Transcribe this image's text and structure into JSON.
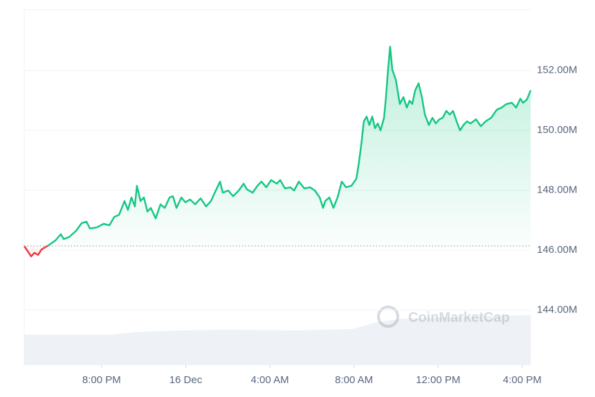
{
  "chart_data": {
    "type": "line",
    "watermark": "CoinMarketCap",
    "x": [
      16.32,
      16.65,
      16.81,
      16.98,
      17.14,
      17.47,
      17.8,
      18.06,
      18.2,
      18.46,
      18.79,
      19.05,
      19.28,
      19.45,
      19.77,
      20.1,
      20.37,
      20.6,
      20.83,
      21.09,
      21.25,
      21.42,
      21.58,
      21.68,
      21.85,
      22.01,
      22.18,
      22.34,
      22.57,
      22.8,
      23.0,
      23.23,
      23.39,
      23.56,
      23.79,
      23.98,
      24.21,
      24.45,
      24.71,
      24.97,
      25.2,
      25.43,
      25.63,
      25.76,
      26.02,
      26.25,
      26.52,
      26.75,
      26.91,
      27.18,
      27.41,
      27.6,
      27.83,
      28.06,
      28.33,
      28.49,
      28.72,
      28.98,
      29.15,
      29.38,
      29.64,
      29.91,
      30.14,
      30.37,
      30.53,
      30.63,
      30.83,
      31.02,
      31.22,
      31.42,
      31.62,
      31.88,
      32.11,
      32.21,
      32.34,
      32.47,
      32.6,
      32.73,
      32.87,
      33.0,
      33.13,
      33.26,
      33.43,
      33.52,
      33.62,
      33.72,
      33.82,
      33.99,
      34.18,
      34.35,
      34.51,
      34.64,
      34.77,
      34.91,
      35.07,
      35.23,
      35.37,
      35.56,
      35.73,
      35.89,
      36.06,
      36.22,
      36.39,
      36.55,
      36.71,
      36.88,
      37.04,
      37.21,
      37.37,
      37.54,
      37.8,
      38.03,
      38.26,
      38.52,
      38.79,
      39.02,
      39.25,
      39.51,
      39.71,
      39.91,
      40.04,
      40.23,
      40.4
    ],
    "series": [
      {
        "color": "#16c784",
        "down_color": "#ea3943",
        "values": [
          146.14,
          145.79,
          145.91,
          145.84,
          146.02,
          146.16,
          146.32,
          146.53,
          146.37,
          146.44,
          146.65,
          146.9,
          146.95,
          146.72,
          146.76,
          146.88,
          146.83,
          147.11,
          147.18,
          147.64,
          147.34,
          147.76,
          147.46,
          148.15,
          147.64,
          147.76,
          147.29,
          147.41,
          147.06,
          147.53,
          147.41,
          147.76,
          147.8,
          147.41,
          147.76,
          147.6,
          147.69,
          147.53,
          147.73,
          147.46,
          147.64,
          147.99,
          148.29,
          147.92,
          147.99,
          147.8,
          147.99,
          148.22,
          148.03,
          147.92,
          148.15,
          148.29,
          148.1,
          148.34,
          148.22,
          148.34,
          148.06,
          148.1,
          147.99,
          148.29,
          148.06,
          148.1,
          147.99,
          147.76,
          147.41,
          147.64,
          147.76,
          147.41,
          147.76,
          148.29,
          148.1,
          148.15,
          148.38,
          148.8,
          149.49,
          150.3,
          150.46,
          150.18,
          150.46,
          150.07,
          150.23,
          150.0,
          150.42,
          151.11,
          152.03,
          152.8,
          152.03,
          151.69,
          150.88,
          151.11,
          150.76,
          150.99,
          150.88,
          151.34,
          151.57,
          151.11,
          150.53,
          150.18,
          150.42,
          150.23,
          150.37,
          150.42,
          150.65,
          150.53,
          150.65,
          150.3,
          150.0,
          150.18,
          150.3,
          150.23,
          150.37,
          150.14,
          150.3,
          150.42,
          150.69,
          150.76,
          150.88,
          150.92,
          150.76,
          151.06,
          150.92,
          151.04,
          151.34
        ]
      }
    ],
    "xlim": [
      16.32,
      40.4
    ],
    "xticks": [
      {
        "value": 20,
        "label": "8:00 PM"
      },
      {
        "value": 24,
        "label": "16 Dec"
      },
      {
        "value": 28,
        "label": "4:00 AM"
      },
      {
        "value": 32,
        "label": "8:00 AM"
      },
      {
        "value": 36,
        "label": "12:00 PM"
      },
      {
        "value": 40,
        "label": "4:00 PM"
      }
    ],
    "ylim": [
      142.16,
      154.03
    ],
    "yticks": [
      {
        "value": 144,
        "label": "144.00M"
      },
      {
        "value": 146,
        "label": "146.00M"
      },
      {
        "value": 148,
        "label": "148.00M"
      },
      {
        "value": 150,
        "label": "150.00M"
      },
      {
        "value": 152,
        "label": "152.00M"
      }
    ],
    "grid": true
  }
}
